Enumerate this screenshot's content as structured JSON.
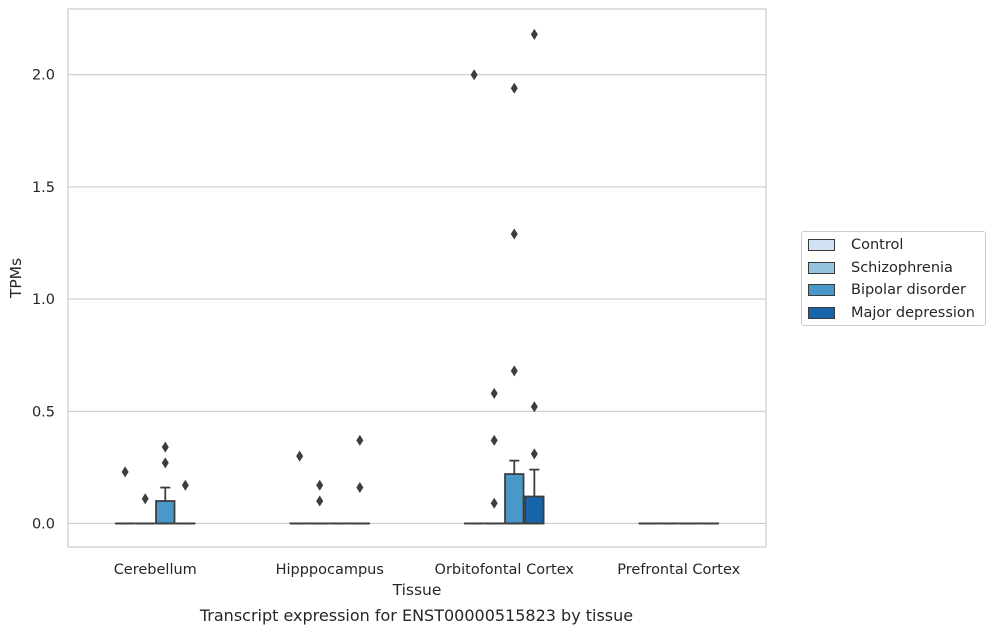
{
  "chart_data": {
    "type": "box",
    "caption": "Transcript expression for ENST00000515823 by tissue",
    "xlabel": "Tissue",
    "ylabel": "TPMs",
    "ylim": [
      -0.105,
      2.293
    ],
    "yticks": [
      0.0,
      0.5,
      1.0,
      1.5,
      2.0
    ],
    "ytick_labels": [
      "0.0",
      "0.5",
      "1.0",
      "1.5",
      "2.0"
    ],
    "categories": [
      "Cerebellum",
      "Hipppocampus",
      "Orbitofontal Cortex",
      "Prefrontal Cortex"
    ],
    "grid": "horizontal",
    "legend_position": "right",
    "series": [
      {
        "name": "Control",
        "color": "#d0e1f2",
        "boxes": [
          {
            "q1": 0,
            "median": 0,
            "q3": 0,
            "whisker_low": 0,
            "whisker_high": 0,
            "outliers": [
              0.23
            ]
          },
          {
            "q1": 0,
            "median": 0,
            "q3": 0,
            "whisker_low": 0,
            "whisker_high": 0,
            "outliers": [
              0.3
            ]
          },
          {
            "q1": 0,
            "median": 0,
            "q3": 0,
            "whisker_low": 0,
            "whisker_high": 0,
            "outliers": [
              2.0
            ]
          },
          {
            "q1": 0,
            "median": 0,
            "q3": 0,
            "whisker_low": 0,
            "whisker_high": 0,
            "outliers": []
          }
        ]
      },
      {
        "name": "Schizophrenia",
        "color": "#94c4df",
        "boxes": [
          {
            "q1": 0,
            "median": 0,
            "q3": 0,
            "whisker_low": 0,
            "whisker_high": 0,
            "outliers": [
              0.11
            ]
          },
          {
            "q1": 0,
            "median": 0,
            "q3": 0,
            "whisker_low": 0,
            "whisker_high": 0,
            "outliers": [
              0.17,
              0.1
            ]
          },
          {
            "q1": 0,
            "median": 0,
            "q3": 0,
            "whisker_low": 0,
            "whisker_high": 0,
            "outliers": [
              0.37,
              0.58,
              0.09
            ]
          },
          {
            "q1": 0,
            "median": 0,
            "q3": 0,
            "whisker_low": 0,
            "whisker_high": 0,
            "outliers": []
          }
        ]
      },
      {
        "name": "Bipolar disorder",
        "color": "#4a98c9",
        "boxes": [
          {
            "q1": 0,
            "median": 0,
            "q3": 0.1,
            "whisker_low": 0,
            "whisker_high": 0.16,
            "outliers": [
              0.34,
              0.27
            ]
          },
          {
            "q1": 0,
            "median": 0,
            "q3": 0,
            "whisker_low": 0,
            "whisker_high": 0,
            "outliers": []
          },
          {
            "q1": 0,
            "median": 0,
            "q3": 0.22,
            "whisker_low": 0,
            "whisker_high": 0.28,
            "outliers": [
              1.94,
              1.29,
              0.68
            ]
          },
          {
            "q1": 0,
            "median": 0,
            "q3": 0,
            "whisker_low": 0,
            "whisker_high": 0,
            "outliers": []
          }
        ]
      },
      {
        "name": "Major depression",
        "color": "#1764ab",
        "boxes": [
          {
            "q1": 0,
            "median": 0,
            "q3": 0,
            "whisker_low": 0,
            "whisker_high": 0,
            "outliers": [
              0.17
            ]
          },
          {
            "q1": 0,
            "median": 0,
            "q3": 0,
            "whisker_low": 0,
            "whisker_high": 0,
            "outliers": [
              0.37,
              0.16
            ]
          },
          {
            "q1": 0,
            "median": 0,
            "q3": 0.12,
            "whisker_low": 0,
            "whisker_high": 0.24,
            "outliers": [
              2.18,
              0.52,
              0.31
            ]
          },
          {
            "q1": 0,
            "median": 0,
            "q3": 0,
            "whisker_low": 0,
            "whisker_high": 0,
            "outliers": []
          }
        ]
      }
    ]
  }
}
